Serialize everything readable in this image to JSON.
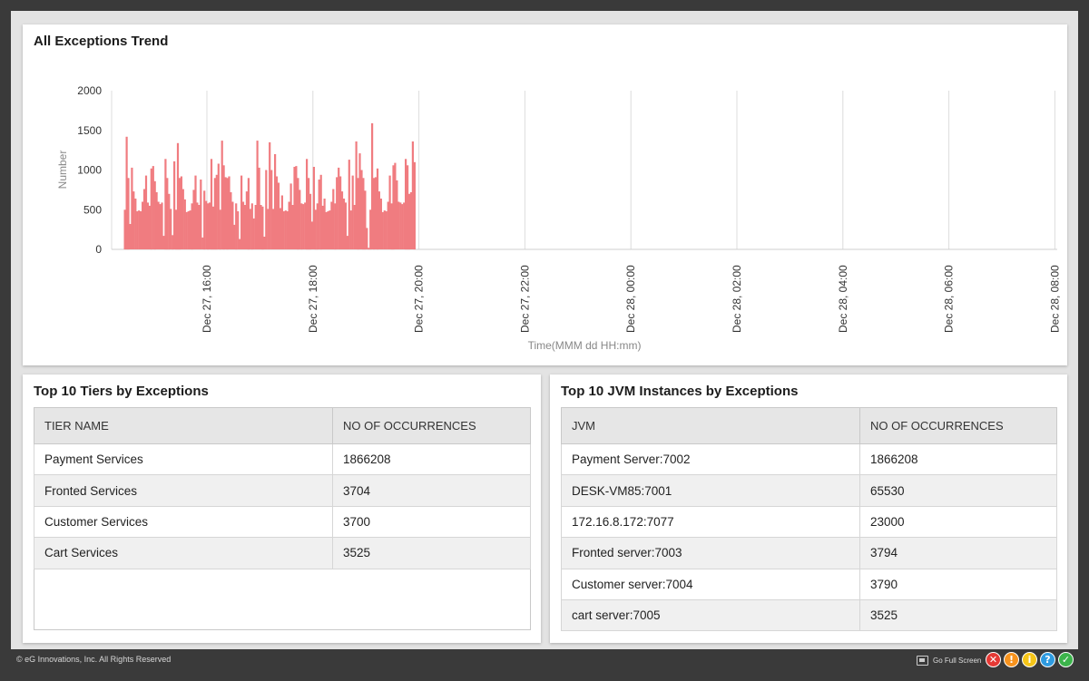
{
  "chart_panel": {
    "title": "All Exceptions Trend"
  },
  "chart_data": {
    "type": "bar",
    "title": "All Exceptions Trend",
    "xlabel": "Time(MMM dd HH:mm)",
    "ylabel": "Number",
    "ylim": [
      0,
      2000
    ],
    "y_ticks": [
      0,
      500,
      1000,
      1500,
      2000
    ],
    "x_ticks": [
      "Dec 27, 16:00",
      "Dec 27, 18:00",
      "Dec 27, 20:00",
      "Dec 27, 22:00",
      "Dec 28, 00:00",
      "Dec 28, 02:00",
      "Dec 28, 04:00",
      "Dec 28, 06:00",
      "Dec 28, 08:00"
    ],
    "x_start": "Dec 27, 14:26",
    "x_step_minutes": 2,
    "color": "#f07c80",
    "grid": true,
    "values": [
      500,
      1420,
      900,
      320,
      1030,
      730,
      640,
      480,
      490,
      480,
      600,
      760,
      930,
      590,
      550,
      1020,
      1050,
      860,
      720,
      600,
      570,
      590,
      170,
      1140,
      900,
      700,
      510,
      180,
      1110,
      500,
      1340,
      900,
      920,
      760,
      630,
      470,
      480,
      490,
      580,
      750,
      930,
      590,
      560,
      880,
      150,
      740,
      610,
      580,
      590,
      1140,
      540,
      900,
      940,
      1080,
      500,
      1370,
      1060,
      910,
      900,
      920,
      720,
      600,
      310,
      580,
      480,
      130,
      930,
      600,
      560,
      730,
      900,
      510,
      580,
      390,
      560,
      1370,
      1030,
      560,
      540,
      160,
      1000,
      510,
      1350,
      1000,
      510,
      1200,
      920,
      840,
      520,
      680,
      480,
      490,
      480,
      600,
      830,
      560,
      1040,
      1050,
      900,
      750,
      580,
      570,
      590,
      1140,
      900,
      700,
      350,
      1040,
      500,
      580,
      880,
      940,
      550,
      640,
      470,
      480,
      490,
      600,
      760,
      580,
      910,
      1030,
      920,
      730,
      640,
      590,
      170,
      1130,
      490,
      930,
      560,
      1360,
      900,
      1210,
      1000,
      900,
      740,
      270,
      20,
      500,
      1590,
      900,
      910,
      1020,
      730,
      640,
      470,
      490,
      480,
      600,
      930,
      580,
      1060,
      1090,
      870,
      600,
      590,
      570,
      590,
      1140,
      1060,
      700,
      720,
      1360,
      1100
    ]
  },
  "tiers_panel": {
    "title": "Top 10 Tiers by Exceptions",
    "columns": [
      "TIER NAME",
      "NO OF OCCURRENCES"
    ],
    "rows": [
      [
        "Payment Services",
        "1866208"
      ],
      [
        "Fronted Services",
        "3704"
      ],
      [
        "Customer Services",
        "3700"
      ],
      [
        "Cart Services",
        "3525"
      ]
    ]
  },
  "jvm_panel": {
    "title": "Top 10 JVM Instances by Exceptions",
    "columns": [
      "JVM",
      "NO OF OCCURRENCES"
    ],
    "rows": [
      [
        "Payment Server:7002",
        "1866208"
      ],
      [
        "DESK-VM85:7001",
        "65530"
      ],
      [
        "172.16.8.172:7077",
        "23000"
      ],
      [
        "Fronted server:7003",
        "3794"
      ],
      [
        "Customer server:7004",
        "3790"
      ],
      [
        "cart server:7005",
        "3525"
      ]
    ]
  },
  "footer": {
    "copyright": "© eG Innovations, Inc. All Rights Reserved",
    "fullscreen_label": "Go Full Screen",
    "status_icons": [
      {
        "name": "critical-icon",
        "glyph": "✕",
        "color": "#e53935"
      },
      {
        "name": "major-icon",
        "glyph": "!",
        "color": "#f7931e"
      },
      {
        "name": "minor-icon",
        "glyph": "i",
        "color": "#f5c518"
      },
      {
        "name": "help-icon",
        "glyph": "?",
        "color": "#2e9be0"
      },
      {
        "name": "normal-icon",
        "glyph": "✓",
        "color": "#3cb44b"
      }
    ]
  }
}
